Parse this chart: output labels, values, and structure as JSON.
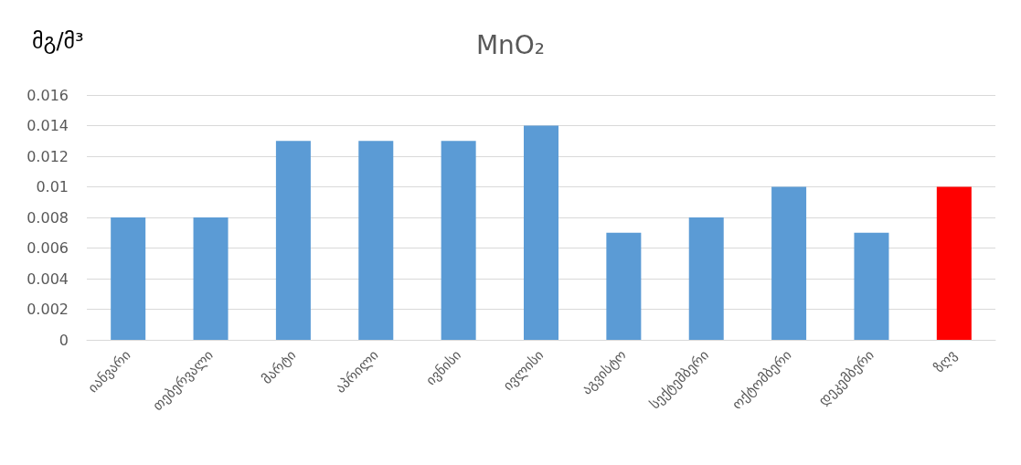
{
  "chart_data": {
    "type": "bar",
    "title": "MnO₂",
    "ylabel": "მგ/მ³",
    "categories": [
      "იანვარი",
      "თებერვალი",
      "მარტი",
      "აპრილი",
      "ივნისი",
      "ივლისი",
      "აგვისტო",
      "სექტემბერი",
      "ოქტომბერი",
      "დეკემბერი",
      "ზღვ"
    ],
    "values": [
      0.008,
      0.008,
      0.013,
      0.013,
      0.013,
      0.014,
      0.007,
      0.008,
      0.01,
      0.007,
      0.01
    ],
    "colors": [
      "#5b9bd5",
      "#5b9bd5",
      "#5b9bd5",
      "#5b9bd5",
      "#5b9bd5",
      "#5b9bd5",
      "#5b9bd5",
      "#5b9bd5",
      "#5b9bd5",
      "#5b9bd5",
      "#ff0000"
    ],
    "ylim": [
      0,
      0.016
    ],
    "yticks": [
      0,
      0.002,
      0.004,
      0.006,
      0.008,
      0.01,
      0.012,
      0.014,
      0.016
    ],
    "grid": "y"
  }
}
